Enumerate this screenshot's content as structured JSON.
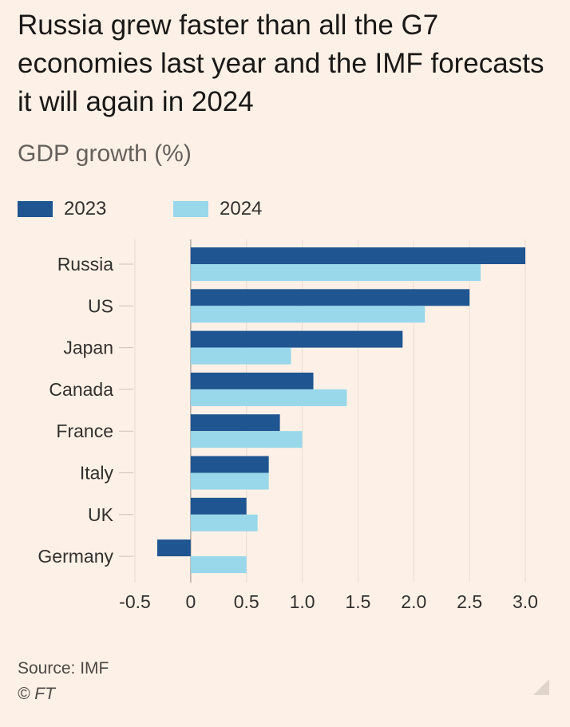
{
  "header": {
    "title": "Russia grew faster than all the G7 economies last year and the IMF forecasts it will again in 2024",
    "subtitle": "GDP growth (%)"
  },
  "footer": {
    "source": "Source: IMF",
    "credit": "© FT"
  },
  "chart_data": {
    "type": "bar",
    "orientation": "horizontal",
    "title": "Russia grew faster than all the G7 economies last year and the IMF forecasts it will again in 2024",
    "subtitle": "GDP growth (%)",
    "categories": [
      "Russia",
      "US",
      "Japan",
      "Canada",
      "France",
      "Italy",
      "UK",
      "Germany"
    ],
    "series": [
      {
        "name": "2023",
        "color": "#1f5591",
        "values": [
          3.0,
          2.5,
          1.9,
          1.1,
          0.8,
          0.7,
          0.5,
          -0.3
        ]
      },
      {
        "name": "2024",
        "color": "#99d8ea",
        "values": [
          2.6,
          2.1,
          0.9,
          1.4,
          1.0,
          0.7,
          0.6,
          0.5
        ]
      }
    ],
    "xlim": [
      -0.5,
      3.0
    ],
    "xticks": [
      -0.5,
      0,
      0.5,
      1.0,
      1.5,
      2.0,
      2.5,
      3.0
    ],
    "xtick_labels": [
      "-0.5",
      "0",
      "0.5",
      "1.0",
      "1.5",
      "2.0",
      "2.5",
      "3.0"
    ],
    "grid": true,
    "legend_position": "top-left",
    "xlabel": "",
    "ylabel": ""
  }
}
